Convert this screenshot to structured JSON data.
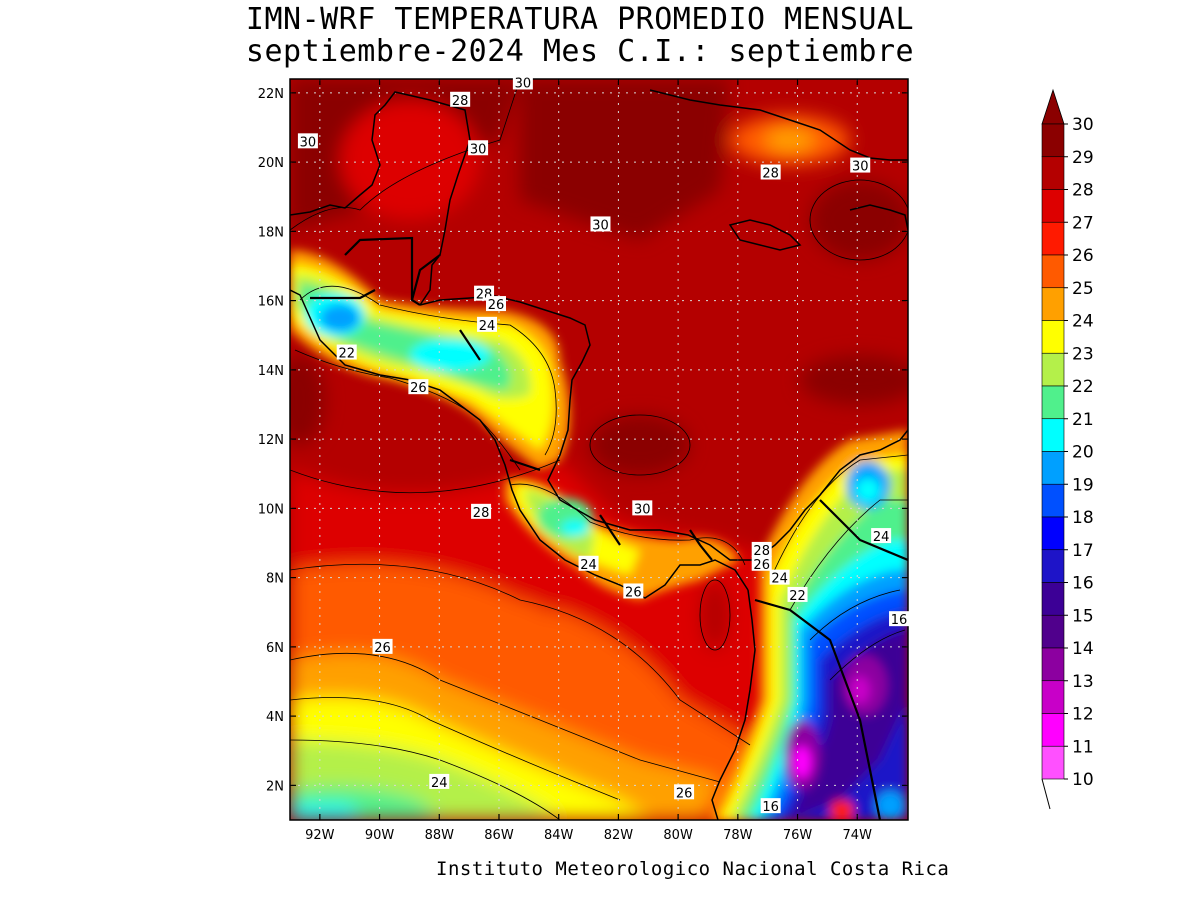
{
  "title_line1": "IMN-WRF  TEMPERATURA PROMEDIO MENSUAL",
  "title_line2": "septiembre-2024 Mes C.I.: septiembre",
  "footer": "Instituto Meteorologico Nacional Costa Rica",
  "map": {
    "lon_range": [
      -93,
      -72.3
    ],
    "lat_range": [
      1,
      22.4
    ],
    "lon_ticks": [
      {
        "value": -92,
        "label": "92W"
      },
      {
        "value": -90,
        "label": "90W"
      },
      {
        "value": -88,
        "label": "88W"
      },
      {
        "value": -86,
        "label": "86W"
      },
      {
        "value": -84,
        "label": "84W"
      },
      {
        "value": -82,
        "label": "82W"
      },
      {
        "value": -80,
        "label": "80W"
      },
      {
        "value": -78,
        "label": "78W"
      },
      {
        "value": -76,
        "label": "76W"
      },
      {
        "value": -74,
        "label": "74W"
      }
    ],
    "lat_ticks": [
      {
        "value": 2,
        "label": "2N"
      },
      {
        "value": 4,
        "label": "4N"
      },
      {
        "value": 6,
        "label": "6N"
      },
      {
        "value": 8,
        "label": "8N"
      },
      {
        "value": 10,
        "label": "10N"
      },
      {
        "value": 12,
        "label": "12N"
      },
      {
        "value": 14,
        "label": "14N"
      },
      {
        "value": 16,
        "label": "16N"
      },
      {
        "value": 18,
        "label": "18N"
      },
      {
        "value": 20,
        "label": "20N"
      },
      {
        "value": 22,
        "label": "22N"
      }
    ],
    "contour_labels": [
      {
        "text": "30",
        "lon": -92.4,
        "lat": 20.6
      },
      {
        "text": "28",
        "lon": -87.3,
        "lat": 21.8
      },
      {
        "text": "30",
        "lon": -85.2,
        "lat": 22.3
      },
      {
        "text": "30",
        "lon": -86.7,
        "lat": 20.4
      },
      {
        "text": "30",
        "lon": -82.6,
        "lat": 18.2
      },
      {
        "text": "28",
        "lon": -76.9,
        "lat": 19.7
      },
      {
        "text": "30",
        "lon": -73.9,
        "lat": 19.9
      },
      {
        "text": "28",
        "lon": -86.5,
        "lat": 16.2
      },
      {
        "text": "26",
        "lon": -86.1,
        "lat": 15.9
      },
      {
        "text": "24",
        "lon": -86.4,
        "lat": 15.3
      },
      {
        "text": "22",
        "lon": -91.1,
        "lat": 14.5
      },
      {
        "text": "26",
        "lon": -88.7,
        "lat": 13.5
      },
      {
        "text": "28",
        "lon": -86.6,
        "lat": 9.9
      },
      {
        "text": "30",
        "lon": -81.2,
        "lat": 10.0
      },
      {
        "text": "24",
        "lon": -83.0,
        "lat": 8.4
      },
      {
        "text": "26",
        "lon": -81.5,
        "lat": 7.6
      },
      {
        "text": "28",
        "lon": -77.2,
        "lat": 8.8
      },
      {
        "text": "26",
        "lon": -77.2,
        "lat": 8.4
      },
      {
        "text": "24",
        "lon": -76.6,
        "lat": 8.0
      },
      {
        "text": "22",
        "lon": -76.0,
        "lat": 7.5
      },
      {
        "text": "24",
        "lon": -73.2,
        "lat": 9.2
      },
      {
        "text": "26",
        "lon": -89.9,
        "lat": 6.0
      },
      {
        "text": "24",
        "lon": -88.0,
        "lat": 2.1
      },
      {
        "text": "26",
        "lon": -79.8,
        "lat": 1.8
      },
      {
        "text": "16",
        "lon": -76.9,
        "lat": 1.4
      },
      {
        "text": "16",
        "lon": -72.6,
        "lat": 6.8
      }
    ]
  },
  "colorbar": {
    "labels": [
      "30",
      "29",
      "28",
      "27",
      "26",
      "25",
      "24",
      "23",
      "22",
      "21",
      "20",
      "19",
      "18",
      "17",
      "16",
      "15",
      "14",
      "13",
      "12",
      "11",
      "10"
    ],
    "colors": [
      "#8b0000",
      "#b40000",
      "#dd0000",
      "#ff1a00",
      "#ff5a00",
      "#ffa000",
      "#ffff00",
      "#b4f04a",
      "#50f08c",
      "#00ffff",
      "#00a0ff",
      "#0050ff",
      "#0000ff",
      "#1e14c8",
      "#3c0096",
      "#50008c",
      "#8c00a0",
      "#c800c8",
      "#ff00ff",
      "#ff50ff",
      "#ffb4ff"
    ],
    "top_arrow_color": "#8b0000"
  }
}
